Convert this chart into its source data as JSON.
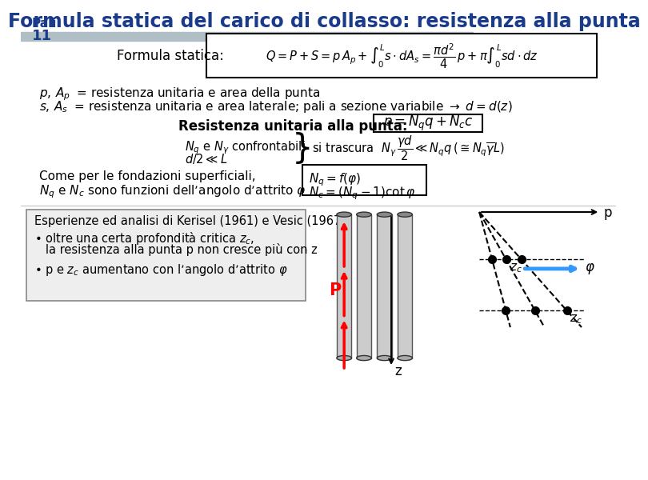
{
  "title": "Formula statica del carico di collasso: resistenza alla punta",
  "title_color": "#1a3a8a",
  "pali_text": "Pali",
  "pali_number": "11",
  "pali_color": "#1a3a8a",
  "bg_color": "#ffffff",
  "header_bar_color": "#b0bec5",
  "formula_statica_label": "Formula statica:",
  "line1": "$p,\\,A_p\\;$ = resistenza unitaria e area della punta",
  "line2": "$s,\\,A_s\\;$ = resistenza unitaria e area laterale; pali a sezione variabile $\\rightarrow$ $d = d(z)$",
  "resistenza_label": "Resistenza unitaria alla punta:",
  "resistenza_formula": "$p = N_q q + N_c c$",
  "confrontabili_text1": "$N_q$ e $N_{\\gamma}$ confrontabili",
  "confrontabili_text2": "$d/2 \\ll L$",
  "si_trascura": "si trascura  $N_{\\gamma}\\,\\dfrac{\\gamma d}{2} \\ll N_q q\\,(\\cong N_q \\overline{\\gamma} L)$",
  "come_per": "Come per le fondazioni superficiali,",
  "nq_nc": "$N_q$ e $N_c$ sono funzioni dell’angolo d’attrito $\\varphi$",
  "nq_formula": "$N_q = f(\\varphi)$",
  "nc_formula": "$N_c = (N_q - 1)\\cot\\varphi$",
  "esperienze": "Esperienze ed analisi di Kerisel (1961) e Vesic (1967):",
  "bullet1_line1": "• oltre una certa profondità critica $z_c$,",
  "bullet1_line2": "   la resistenza alla punta p non cresce più con z",
  "bullet2": "• p e $z_c$ aumentano con l’angolo d’attrito $\\varphi$"
}
